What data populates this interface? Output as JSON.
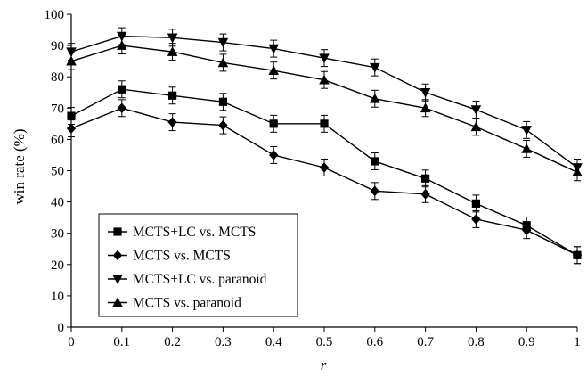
{
  "chart_data": {
    "type": "line",
    "xlabel": "r",
    "ylabel": "win rate (%)",
    "x": [
      0,
      0.1,
      0.2,
      0.3,
      0.4,
      0.5,
      0.6,
      0.7,
      0.8,
      0.9,
      1
    ],
    "xticks": [
      "0",
      "0.1",
      "0.2",
      "0.3",
      "0.4",
      "0.5",
      "0.6",
      "0.7",
      "0.8",
      "0.9",
      "1"
    ],
    "ylim": [
      0,
      100
    ],
    "yticks": [
      "0",
      "10",
      "20",
      "30",
      "40",
      "50",
      "60",
      "70",
      "80",
      "90",
      "100"
    ],
    "grid": false,
    "legend_position": "bottom-left",
    "error_bar": 2.7,
    "series": [
      {
        "name": "MCTS+LC vs. MCTS",
        "marker": "square",
        "values": [
          67.5,
          76,
          74,
          72,
          65,
          65,
          53,
          47.5,
          39.5,
          32.5,
          23
        ]
      },
      {
        "name": "MCTS vs. MCTS",
        "marker": "diamond",
        "values": [
          63.5,
          70,
          65.5,
          64.5,
          55,
          51,
          43.5,
          42.5,
          34.5,
          31,
          23
        ]
      },
      {
        "name": "MCTS+LC vs. paranoid",
        "marker": "triangle-down",
        "values": [
          88,
          93,
          92.5,
          91,
          89,
          86,
          83,
          75,
          69.5,
          63,
          51
        ]
      },
      {
        "name": "MCTS vs. paranoid",
        "marker": "triangle-up",
        "values": [
          85,
          90,
          88,
          84.5,
          82,
          79,
          73,
          70,
          64,
          57,
          49.5
        ]
      }
    ]
  }
}
